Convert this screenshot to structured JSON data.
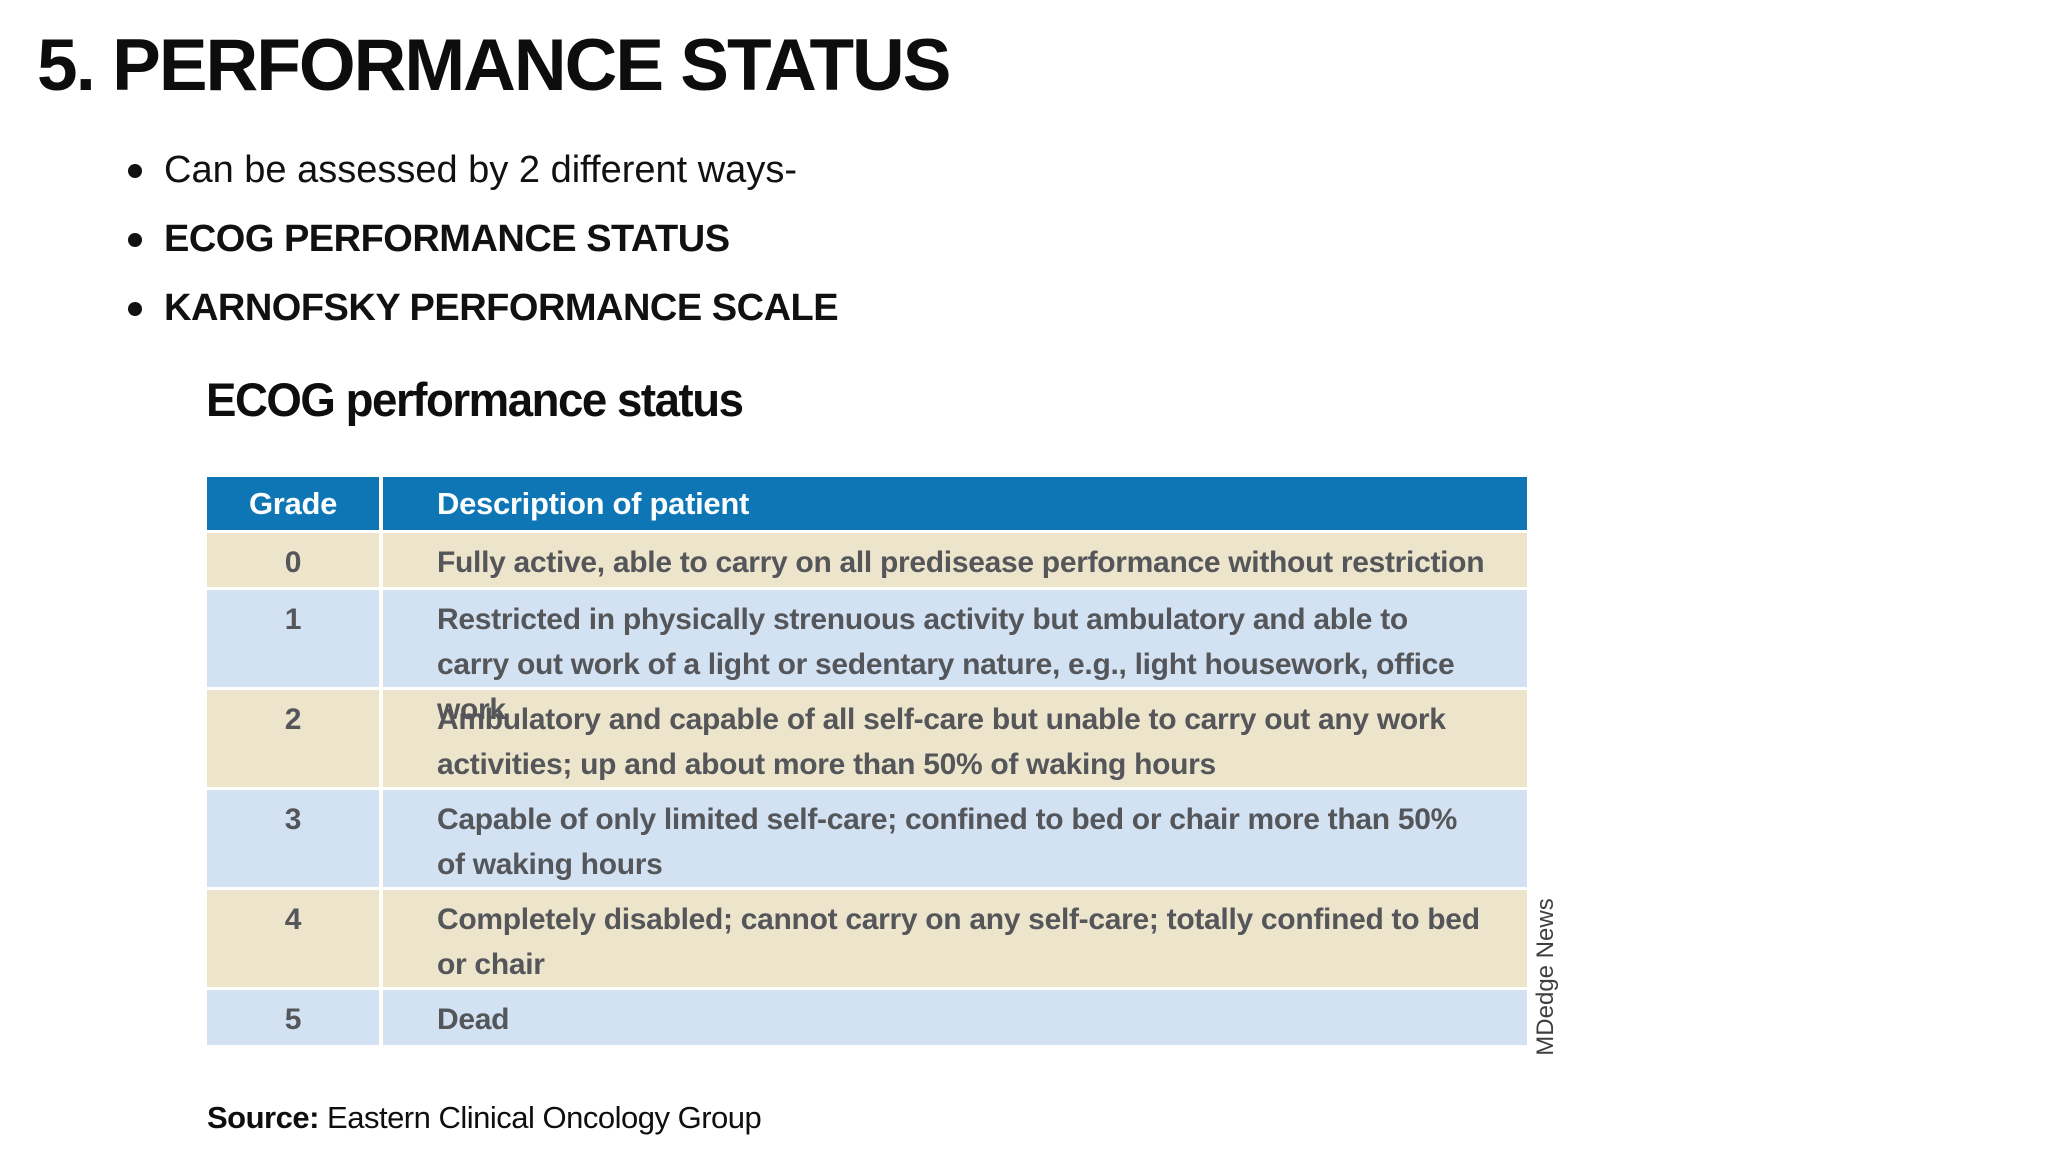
{
  "slide": {
    "title": "5. PERFORMANCE STATUS",
    "bullets": [
      {
        "label": "Can be assessed by 2 different ways-"
      },
      {
        "label": "ECOG PERFORMANCE STATUS"
      },
      {
        "label": "KARNOFSKY PERFORMANCE SCALE"
      }
    ],
    "figure": {
      "heading": "ECOG performance status",
      "table": {
        "columns": [
          "Grade",
          "Description of patient"
        ],
        "rows": [
          {
            "grade": "0",
            "description": "Fully active, able to carry on all predisease performance without restriction"
          },
          {
            "grade": "1",
            "description": "Restricted in physically strenuous activity but ambulatory and able to carry out work of a light or sedentary nature, e.g., light housework, office work"
          },
          {
            "grade": "2",
            "description": "Ambulatory and capable of all self-care but unable to carry out any work activities; up and about more than 50% of waking hours"
          },
          {
            "grade": "3",
            "description": "Capable of only limited self-care; confined to bed or chair more than 50% of waking hours"
          },
          {
            "grade": "4",
            "description": "Completely disabled; cannot carry on any self-care; totally confined to bed or chair"
          },
          {
            "grade": "5",
            "description": "Dead"
          }
        ]
      },
      "credit": "MDedge News",
      "source": {
        "label": "Source:",
        "text": " Eastern Clinical Oncology Group"
      }
    },
    "colors": {
      "header_bg": "#0E76B5",
      "header_text": "#FAFCFD",
      "row_tan": "#EDE4CC",
      "row_blue": "#D3E2F2",
      "row_text": "#54565A"
    }
  }
}
